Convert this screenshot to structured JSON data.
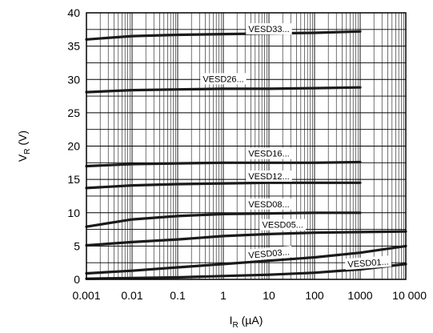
{
  "chart_data": {
    "type": "line",
    "xscale": "log",
    "xlim": [
      0.001,
      10000
    ],
    "ylim": [
      0,
      40
    ],
    "grid": true,
    "x_tick_labels": [
      "0.001",
      "0.01",
      "0.1",
      "1",
      "10",
      "100",
      "1000",
      "10 000"
    ],
    "x_tick_values": [
      0.001,
      0.01,
      0.1,
      1,
      10,
      100,
      1000,
      10000
    ],
    "y_tick_labels": [
      "0",
      "5",
      "10",
      "15",
      "20",
      "25",
      "30",
      "35",
      "40"
    ],
    "y_tick_values": [
      0,
      5,
      10,
      15,
      20,
      25,
      30,
      35,
      40
    ],
    "xlabel": {
      "main": "I",
      "sub": "R",
      "unit": " (µA)"
    },
    "ylabel": {
      "main": "V",
      "sub": "R",
      "unit": " (V)"
    },
    "series": [
      {
        "name": "VESD33...",
        "x": [
          0.001,
          0.01,
          0.1,
          1,
          10,
          100,
          1000
        ],
        "y": [
          36.0,
          36.5,
          36.7,
          36.8,
          36.9,
          37.0,
          37.2
        ]
      },
      {
        "name": "VESD26...",
        "x": [
          0.001,
          0.01,
          0.1,
          1,
          10,
          100,
          1000
        ],
        "y": [
          28.1,
          28.4,
          28.5,
          28.6,
          28.6,
          28.7,
          28.8
        ]
      },
      {
        "name": "VESD16...",
        "x": [
          0.001,
          0.01,
          0.1,
          1,
          10,
          100,
          1000
        ],
        "y": [
          17.0,
          17.3,
          17.4,
          17.5,
          17.5,
          17.5,
          17.6
        ]
      },
      {
        "name": "VESD12...",
        "x": [
          0.001,
          0.01,
          0.1,
          1,
          10,
          100,
          1000
        ],
        "y": [
          13.7,
          14.1,
          14.3,
          14.4,
          14.5,
          14.5,
          14.5
        ]
      },
      {
        "name": "VESD08...",
        "x": [
          0.001,
          0.01,
          0.1,
          1,
          10,
          100,
          1000
        ],
        "y": [
          7.9,
          9.0,
          9.5,
          9.8,
          9.9,
          10.0,
          10.0
        ]
      },
      {
        "name": "VESD05...",
        "x": [
          0.001,
          0.01,
          0.1,
          1,
          10,
          100,
          1000,
          10000
        ],
        "y": [
          5.1,
          5.6,
          6.0,
          6.5,
          6.8,
          7.0,
          7.1,
          7.2
        ]
      },
      {
        "name": "VESD03...",
        "x": [
          0.001,
          0.01,
          0.1,
          1,
          10,
          100,
          1000,
          10000
        ],
        "y": [
          0.9,
          1.3,
          1.8,
          2.3,
          2.8,
          3.3,
          4.0,
          5.0
        ]
      },
      {
        "name": "VESD01...",
        "x": [
          0.001,
          0.01,
          0.1,
          1,
          10,
          100,
          1000,
          10000
        ],
        "y": [
          0.1,
          0.2,
          0.3,
          0.5,
          0.7,
          1.0,
          1.5,
          2.3
        ]
      }
    ]
  }
}
